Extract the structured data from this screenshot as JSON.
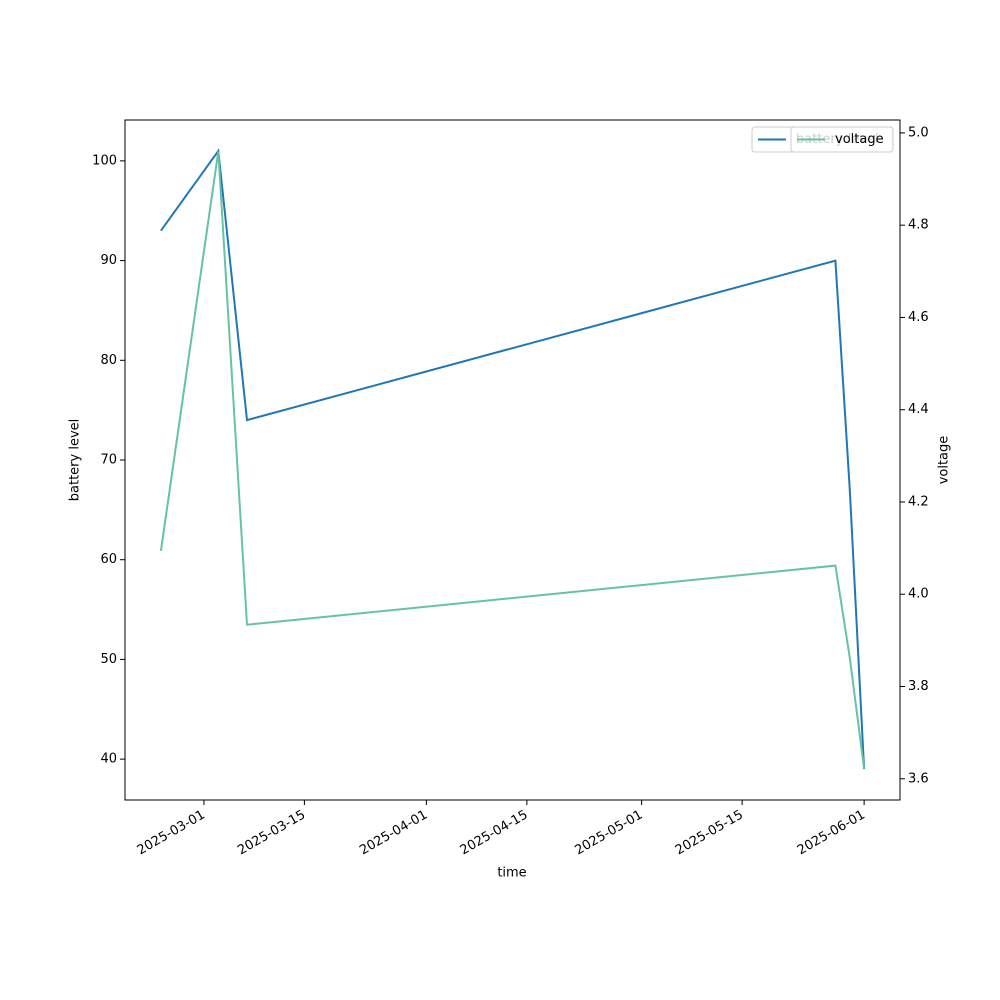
{
  "chart_data": {
    "type": "line",
    "xlabel": "time",
    "ylabel": "battery level",
    "y2label": "voltage",
    "x": [
      "2025-02-23",
      "2025-03-03",
      "2025-03-07",
      "2025-05-28",
      "2025-05-30",
      "2025-06-01"
    ],
    "xlim": [
      "2025-02-18",
      "2025-06-06"
    ],
    "xticks": [
      "2025-03-01",
      "2025-03-15",
      "2025-04-01",
      "2025-04-15",
      "2025-05-01",
      "2025-05-15",
      "2025-06-01"
    ],
    "ylim": [
      35.9,
      104.1
    ],
    "yticks": [
      40,
      50,
      60,
      70,
      80,
      90,
      100
    ],
    "y2lim": [
      3.554,
      5.028
    ],
    "y2ticks": [
      3.6,
      3.8,
      {
        "value": 4,
        "label": "4.0"
      },
      4.2,
      4.4,
      4.6,
      4.8,
      {
        "value": 5,
        "label": "5.0"
      }
    ],
    "legend": "upper right",
    "series": [
      {
        "name": "battery level",
        "color": "#1f77b4",
        "values": [
          93,
          101,
          74,
          90,
          67,
          39
        ]
      },
      {
        "name": "voltage",
        "color": "#66c2a5",
        "axis": "y2",
        "values": [
          4.094,
          4.96,
          3.934,
          4.062,
          3.862,
          3.622
        ]
      }
    ]
  }
}
